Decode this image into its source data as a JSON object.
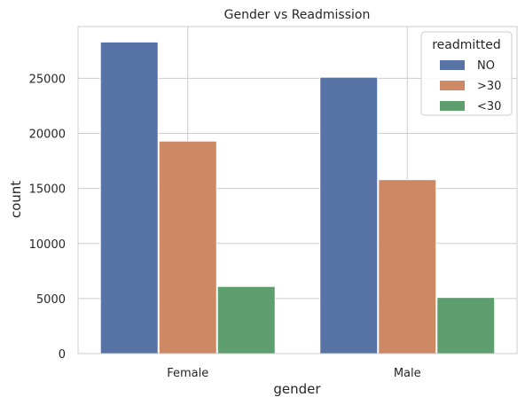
{
  "chart_data": {
    "type": "bar",
    "title": "Gender vs Readmission",
    "xlabel": "gender",
    "ylabel": "count",
    "categories": [
      "Female",
      "Male"
    ],
    "series": [
      {
        "name": "NO",
        "values": [
          28300,
          25100
        ],
        "color": "#5874a6"
      },
      {
        "name": ">30",
        "values": [
          19300,
          15800
        ],
        "color": "#cc8963"
      },
      {
        "name": "<30",
        "values": [
          6100,
          5100
        ],
        "color": "#5f9e6e"
      }
    ],
    "ylim": [
      0,
      29700
    ],
    "yticks": [
      0,
      5000,
      10000,
      15000,
      20000,
      25000
    ],
    "grid": true,
    "legend": {
      "title": "readmitted",
      "placement": "top-right"
    }
  }
}
